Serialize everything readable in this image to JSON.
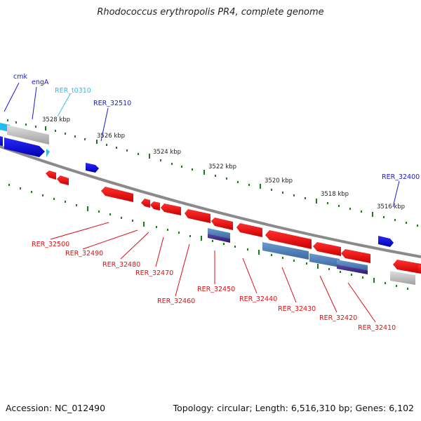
{
  "title": "Rhodococcus erythropolis PR4, complete genome",
  "footer": {
    "accession": "Accession: NC_012490",
    "summary": "Topology: circular; Length: 6,516,310 bp; Genes: 6,102"
  },
  "scale_labels": [
    "3528 kbp",
    "3526 kbp",
    "3524 kbp",
    "3522 kbp",
    "3520 kbp",
    "3518 kbp",
    "3516 kbp"
  ],
  "gene_labels": {
    "forward": [
      "cmk",
      "engA",
      "RER_t0310",
      "RER_32510",
      "RER_32400"
    ],
    "reverse": [
      "RER_32500",
      "RER_32490",
      "RER_32480",
      "RER_32470",
      "RER_32460",
      "RER_32450",
      "RER_32440",
      "RER_32430",
      "RER_32420",
      "RER_32410"
    ]
  },
  "colors": {
    "forward_label": "#1a1acc",
    "trna_label": "#33bbee",
    "reverse_label": "#dd1111",
    "forward_gene": "#1010e0",
    "reverse_gene": "#ff1010",
    "backbone": "#808080",
    "tick": "#1a7a1a"
  }
}
